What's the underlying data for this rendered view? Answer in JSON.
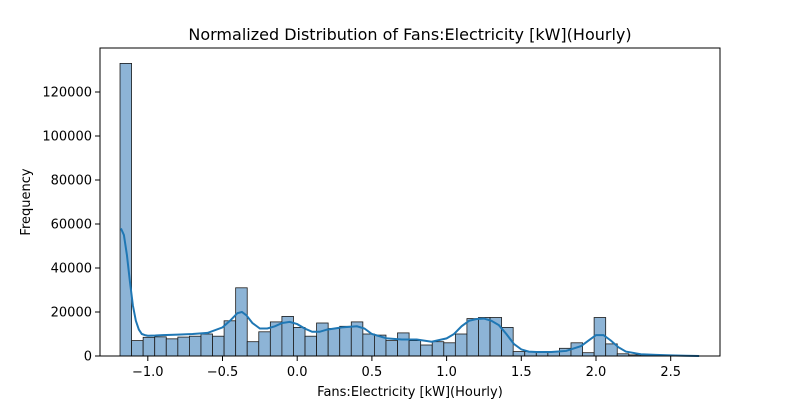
{
  "chart_data": {
    "type": "bar",
    "title": "Normalized Distribution of Fans:Electricity [kW](Hourly)",
    "xlabel": "Fans:Electricity [kW](Hourly)",
    "ylabel": "Frequency",
    "xlim": [
      -1.32,
      2.83
    ],
    "ylim": [
      0,
      140000
    ],
    "grid": false,
    "x_ticks": [
      -1.0,
      -0.5,
      0.0,
      0.5,
      1.0,
      1.5,
      2.0,
      2.5
    ],
    "x_tick_labels": [
      "−1.0",
      "−0.5",
      "0.0",
      "0.5",
      "1.0",
      "1.5",
      "2.0",
      "2.5"
    ],
    "y_ticks": [
      0,
      20000,
      40000,
      60000,
      80000,
      100000,
      120000
    ],
    "y_tick_labels": [
      "0",
      "20000",
      "40000",
      "60000",
      "80000",
      "100000",
      "120000"
    ],
    "bin_start": -1.186,
    "bin_width": 0.0774,
    "series": [
      {
        "kind": "histogram",
        "values": [
          133000,
          7000,
          8500,
          8700,
          7800,
          8600,
          9000,
          10000,
          9000,
          16000,
          31000,
          6500,
          11000,
          15500,
          18000,
          13000,
          9000,
          15000,
          12500,
          13500,
          15500,
          10000,
          9500,
          7000,
          10500,
          7000,
          5000,
          6500,
          6000,
          10000,
          17000,
          17500,
          17500,
          13000,
          2000,
          2000,
          1800,
          2000,
          3500,
          6000,
          1500,
          17500,
          5500,
          1000,
          500,
          500,
          200,
          200,
          100,
          50
        ]
      },
      {
        "kind": "kde",
        "x": [
          -1.18,
          -1.16,
          -1.14,
          -1.12,
          -1.1,
          -1.08,
          -1.06,
          -1.04,
          -1.02,
          -1.0,
          -0.95,
          -0.9,
          -0.8,
          -0.7,
          -0.6,
          -0.5,
          -0.45,
          -0.4,
          -0.37,
          -0.34,
          -0.3,
          -0.25,
          -0.2,
          -0.15,
          -0.1,
          -0.05,
          0.0,
          0.05,
          0.1,
          0.15,
          0.2,
          0.3,
          0.4,
          0.45,
          0.5,
          0.6,
          0.7,
          0.8,
          0.9,
          1.0,
          1.05,
          1.1,
          1.15,
          1.2,
          1.25,
          1.3,
          1.35,
          1.4,
          1.45,
          1.5,
          1.55,
          1.6,
          1.7,
          1.8,
          1.9,
          1.95,
          2.0,
          2.05,
          2.1,
          2.15,
          2.2,
          2.3,
          2.4,
          2.5,
          2.6,
          2.69
        ],
        "y": [
          58000,
          55000,
          46000,
          34000,
          23000,
          16000,
          12000,
          10000,
          9500,
          9200,
          9300,
          9500,
          9700,
          10000,
          10500,
          13000,
          16000,
          19500,
          20000,
          18500,
          15000,
          12500,
          12500,
          13500,
          15000,
          15500,
          14500,
          12500,
          11000,
          11000,
          12000,
          13000,
          13500,
          12500,
          10000,
          8000,
          7500,
          7500,
          6500,
          8000,
          10000,
          13500,
          16000,
          16800,
          17000,
          16000,
          14000,
          10000,
          5500,
          3000,
          2000,
          1800,
          1800,
          2300,
          4500,
          7000,
          9500,
          9500,
          7000,
          4000,
          2000,
          800,
          500,
          300,
          100,
          0
        ]
      }
    ]
  },
  "colors": {
    "bar_fill": "#8db4d6",
    "bar_edge": "#1a1a1a",
    "kde_line": "#1f77b4",
    "axes": "#000000",
    "background": "#ffffff"
  }
}
